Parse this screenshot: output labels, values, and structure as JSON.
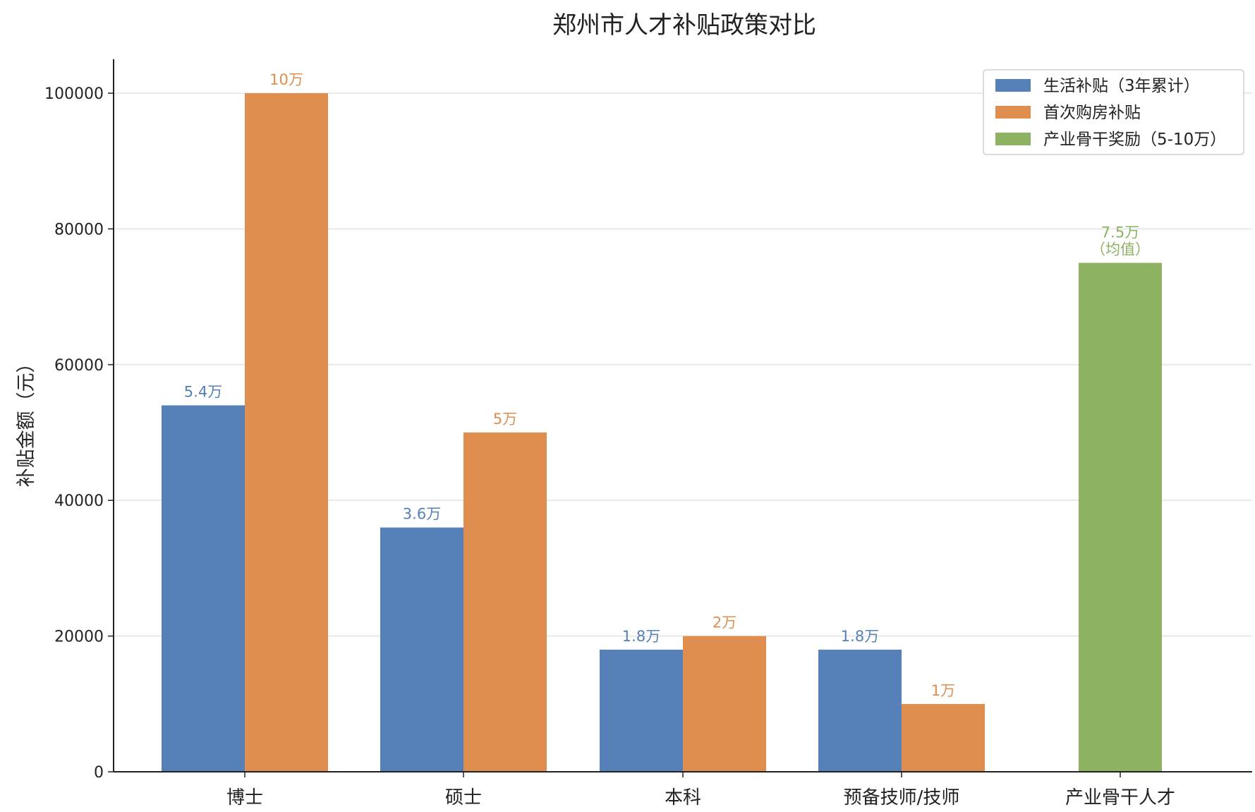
{
  "chart_data": {
    "type": "bar",
    "title": "郑州市人才补贴政策对比",
    "xlabel": "",
    "ylabel": "补贴金额（元）",
    "ylim": [
      0,
      105000
    ],
    "yticks": [
      0,
      20000,
      40000,
      60000,
      80000,
      100000
    ],
    "ytick_labels": [
      "0",
      "20000",
      "40000",
      "60000",
      "80000",
      "100000"
    ],
    "grid": "y",
    "legend_position": "top-right",
    "categories": [
      "博士",
      "硕士",
      "本科",
      "预备技师/技师",
      "产业骨干人才"
    ],
    "series": [
      {
        "name": "生活补贴（3年累计）",
        "color": "#5580b8",
        "values": [
          54000,
          36000,
          18000,
          18000,
          null
        ],
        "labels": [
          "5.4万",
          "3.6万",
          "1.8万",
          "1.8万",
          ""
        ]
      },
      {
        "name": "首次购房补贴",
        "color": "#df8e50",
        "values": [
          100000,
          50000,
          20000,
          10000,
          null
        ],
        "labels": [
          "10万",
          "5万",
          "2万",
          "1万",
          ""
        ]
      },
      {
        "name": "产业骨干奖励（5-10万）",
        "color": "#8cb262",
        "values": [
          null,
          null,
          null,
          null,
          75000
        ],
        "labels": [
          "",
          "",
          "",
          "",
          "7.5万\n（均值）"
        ]
      }
    ]
  }
}
